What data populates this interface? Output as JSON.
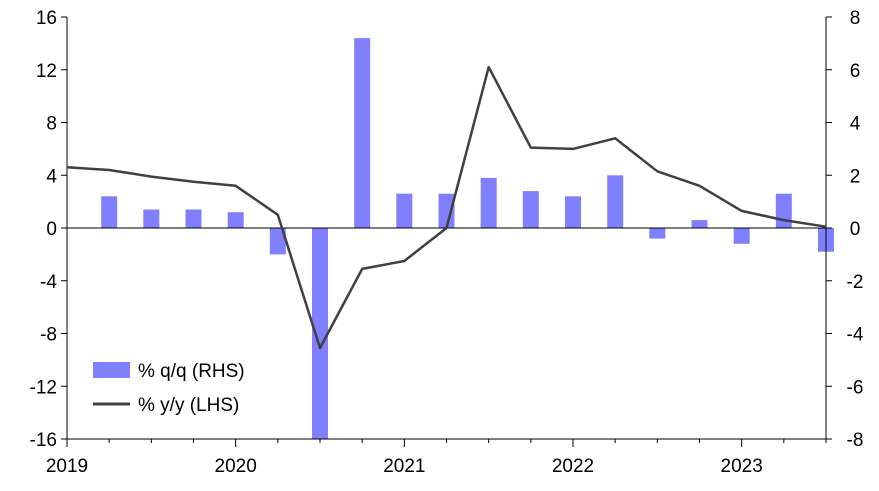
{
  "chart_data": {
    "type": "bar+line",
    "x_axis": {
      "ticks": [
        "2019",
        "2020",
        "2021",
        "2022",
        "2023"
      ],
      "range": [
        "2019 Q1",
        "2023 Q3"
      ]
    },
    "y_left": {
      "range": [
        -16,
        16
      ],
      "ticks": [
        "16",
        "12",
        "8",
        "4",
        "0",
        "-4",
        "-8",
        "-12",
        "-16"
      ]
    },
    "y_right": {
      "range": [
        -8,
        8
      ],
      "ticks": [
        "8",
        "6",
        "4",
        "2",
        "0",
        "-2",
        "-4",
        "-6",
        "-8"
      ]
    },
    "grid": false,
    "legend_placement": "bottom-left",
    "categories": [
      "2019 Q1",
      "2019 Q2",
      "2019 Q3",
      "2019 Q4",
      "2020 Q1",
      "2020 Q2",
      "2020 Q3",
      "2020 Q4",
      "2021 Q1",
      "2021 Q2",
      "2021 Q3",
      "2021 Q4",
      "2022 Q1",
      "2022 Q2",
      "2022 Q3",
      "2022 Q4",
      "2023 Q1",
      "2023 Q2",
      "2023 Q3"
    ],
    "series": [
      {
        "name": "% q/q (RHS)",
        "kind": "bar",
        "axis": "right",
        "color": "#8080ff",
        "values": [
          null,
          1.2,
          0.7,
          0.7,
          0.6,
          -1.0,
          -8.0,
          7.2,
          1.3,
          1.3,
          1.9,
          1.4,
          1.2,
          2.0,
          -0.4,
          0.3,
          -0.6,
          1.3,
          -0.9
        ]
      },
      {
        "name": "% y/y (LHS)",
        "kind": "line",
        "axis": "left",
        "color": "#404040",
        "values": [
          4.6,
          4.4,
          3.9,
          3.5,
          3.2,
          1.0,
          -9.1,
          -3.1,
          -2.5,
          0.0,
          12.2,
          6.1,
          6.0,
          6.8,
          4.3,
          3.2,
          1.3,
          0.6,
          0.1
        ]
      }
    ]
  }
}
